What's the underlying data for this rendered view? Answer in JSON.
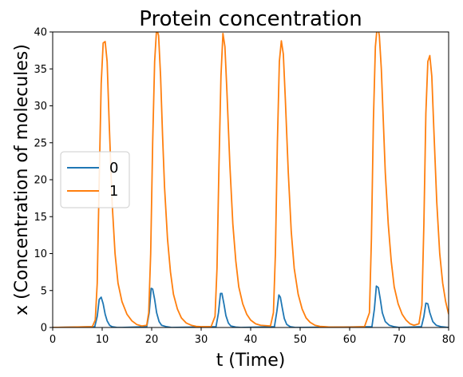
{
  "chart_data": {
    "type": "line",
    "title": "Protein concentration",
    "xlabel": "t (Time)",
    "ylabel": "x (Concentration of molecules)",
    "xlim": [
      0,
      80
    ],
    "ylim": [
      0,
      40
    ],
    "xticks": [
      "0",
      "10",
      "20",
      "30",
      "40",
      "50",
      "60",
      "70",
      "80"
    ],
    "yticks": [
      "0",
      "5",
      "10",
      "15",
      "20",
      "25",
      "30",
      "35",
      "40"
    ],
    "grid": false,
    "legend_position": "center-left",
    "colors": {
      "series0": "#1f77b4",
      "series1": "#ff7f0e"
    },
    "series": [
      {
        "name": "0",
        "x": [
          0,
          8.5,
          9.0,
          9.4,
          9.8,
          10.2,
          10.6,
          11.0,
          11.5,
          12.0,
          13.0,
          14.0,
          19.0,
          19.5,
          19.9,
          20.2,
          20.6,
          21.0,
          21.5,
          22.0,
          23.0,
          24.0,
          33.0,
          33.5,
          33.9,
          34.2,
          34.6,
          35.0,
          35.5,
          36.0,
          37.0,
          38.0,
          44.8,
          45.3,
          45.7,
          46.0,
          46.4,
          46.8,
          47.3,
          48.0,
          49.0,
          64.5,
          65.0,
          65.4,
          65.8,
          66.2,
          66.6,
          67.2,
          68.0,
          69.0,
          70.0,
          74.5,
          75.0,
          75.4,
          75.8,
          76.2,
          76.8,
          77.5,
          78.5,
          80
        ],
        "y": [
          0,
          0.1,
          1.5,
          3.8,
          4.1,
          3.2,
          1.8,
          0.9,
          0.3,
          0.1,
          0,
          0,
          0.1,
          2.0,
          5.3,
          5.2,
          3.8,
          2.0,
          0.8,
          0.3,
          0.1,
          0,
          0.1,
          2.0,
          4.6,
          4.6,
          3.2,
          1.6,
          0.6,
          0.2,
          0.05,
          0,
          0.1,
          2.2,
          4.4,
          4.1,
          2.6,
          1.2,
          0.4,
          0.1,
          0,
          0.1,
          2.5,
          5.6,
          5.4,
          3.8,
          2.0,
          0.8,
          0.3,
          0.1,
          0,
          0.1,
          1.5,
          3.3,
          3.2,
          2.0,
          0.8,
          0.3,
          0.1,
          0
        ]
      },
      {
        "name": "1",
        "x": [
          0,
          8.0,
          8.6,
          9.0,
          9.4,
          9.8,
          10.2,
          10.6,
          11.0,
          11.4,
          12.0,
          12.6,
          13.2,
          14.0,
          15.0,
          16.0,
          17.0,
          18.0,
          19.0,
          19.4,
          19.8,
          20.2,
          20.6,
          21.0,
          21.4,
          21.8,
          22.2,
          22.6,
          23.2,
          23.8,
          24.4,
          25.2,
          26.0,
          27.0,
          28.0,
          29.0,
          30.0,
          32.0,
          32.8,
          33.2,
          33.6,
          34.0,
          34.4,
          34.8,
          35.2,
          35.8,
          36.4,
          37.0,
          37.6,
          38.4,
          39.2,
          40.0,
          41.0,
          42.0,
          44.0,
          44.6,
          45.0,
          45.4,
          45.8,
          46.2,
          46.6,
          47.0,
          47.6,
          48.2,
          48.8,
          49.6,
          50.4,
          51.2,
          52.0,
          53.0,
          54.0,
          55.0,
          56.0,
          58.0,
          60.0,
          63.0,
          64.0,
          64.4,
          64.8,
          65.2,
          65.6,
          66.0,
          66.4,
          66.8,
          67.2,
          67.8,
          68.4,
          69.0,
          69.8,
          70.6,
          71.4,
          72.2,
          73.0,
          74.0,
          74.6,
          75.0,
          75.4,
          75.8,
          76.2,
          76.6,
          77.0,
          77.6,
          78.2,
          78.8,
          79.4,
          80
        ],
        "y": [
          0,
          0.1,
          1.0,
          6.0,
          20.0,
          33.0,
          38.5,
          38.7,
          36.0,
          28.0,
          17.0,
          10.0,
          6.0,
          3.5,
          1.8,
          0.9,
          0.4,
          0.2,
          0.3,
          2.0,
          10.0,
          25.0,
          36.0,
          40.5,
          39.5,
          34.0,
          26.0,
          19.0,
          12.0,
          7.5,
          4.5,
          2.5,
          1.3,
          0.6,
          0.3,
          0.15,
          0.1,
          0.1,
          1.5,
          8.0,
          22.0,
          34.0,
          39.8,
          38.0,
          32.0,
          22.0,
          14.0,
          9.0,
          5.5,
          3.2,
          1.8,
          1.0,
          0.5,
          0.3,
          0.2,
          2.0,
          10.0,
          25.0,
          36.0,
          38.8,
          37.0,
          31.0,
          21.0,
          13.0,
          8.0,
          4.5,
          2.5,
          1.3,
          0.7,
          0.3,
          0.15,
          0.1,
          0.05,
          0.05,
          0.05,
          0.1,
          2.0,
          12.0,
          28.0,
          38.0,
          41.0,
          39.5,
          35.0,
          28.0,
          21.0,
          14.0,
          9.0,
          5.5,
          3.2,
          1.8,
          1.0,
          0.5,
          0.3,
          0.5,
          3.0,
          14.0,
          29.0,
          36.0,
          36.8,
          34.0,
          27.0,
          17.0,
          10.0,
          6.0,
          3.5,
          1.8
        ]
      }
    ]
  }
}
